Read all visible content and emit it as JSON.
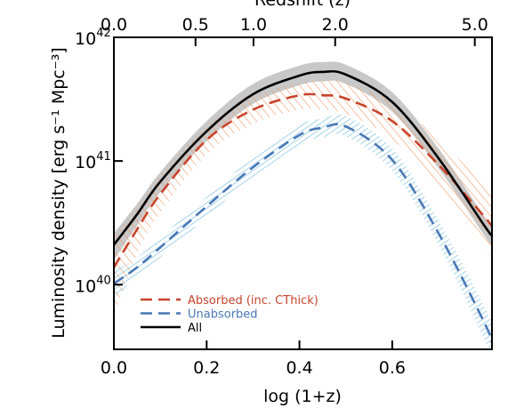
{
  "chart_data": {
    "type": "line",
    "title": "Redshift (z)",
    "xlabel": "log (1+z)",
    "ylabel": "Luminosity density [erg s⁻¹ Mpc⁻³]",
    "xlim": [
      0,
      0.815
    ],
    "xticks": [
      {
        "value": 0,
        "label": "0.0"
      },
      0.2,
      0.4,
      0.6
    ],
    "x2ticks": [
      {
        "value": 0,
        "label": "0.0"
      },
      {
        "value": 0.176,
        "label": "0.5"
      },
      {
        "value": 0.301,
        "label": "1.0"
      },
      {
        "value": 0.477,
        "label": "2.0"
      },
      {
        "value": 0.778,
        "label": "5.0"
      }
    ],
    "yscale": "log",
    "ylim": [
      3e+39,
      1e+42
    ],
    "yticks": [
      {
        "value": 1e+40,
        "label": "10",
        "exponent": "40"
      },
      {
        "value": 1e+41,
        "label": "10",
        "exponent": "41"
      },
      {
        "value": 1e+42,
        "label": "10",
        "exponent": "42"
      }
    ],
    "legend": "lower left",
    "x": [
      0,
      0.05,
      0.1,
      0.2,
      0.3,
      0.4,
      0.45,
      0.5,
      0.6,
      0.7,
      0.8,
      0.815
    ],
    "series": [
      {
        "name": "Absorbed (inc. CThick)",
        "color": "#c8442c",
        "dash": true,
        "band_color": "#f09a6a",
        "band_style": "hatch-up",
        "values": [
          1.38e+40,
          2.8e+40,
          5.4e+40,
          1.48e+41,
          2.6e+41,
          3.4e+41,
          3.4e+41,
          3.2e+41,
          2.1e+41,
          9.3e+40,
          3.5e+40,
          2.95e+40
        ],
        "lower": [
          5.6e+39,
          1.78e+40,
          3.8e+40,
          1.12e+41,
          2e+41,
          2.6e+41,
          2.6e+41,
          2.4e+41,
          1.5e+41,
          5.6e+40,
          2e+40,
          1.66e+40
        ],
        "upper": [
          2.5e+40,
          4.2e+40,
          7.6e+40,
          1.9e+41,
          3.3e+41,
          4.3e+41,
          4.4e+41,
          4.3e+41,
          3e+41,
          1.5e+41,
          6.3e+40,
          5.2e+40
        ]
      },
      {
        "name": "Unabsorbed",
        "color": "#4a78b5",
        "dash": true,
        "band_color": "#5ab0d8",
        "band_style": "hatch-down",
        "values": [
          1.02e+40,
          1.38e+40,
          2e+40,
          4.3e+40,
          8.9e+40,
          1.62e+41,
          1.86e+41,
          1.9e+41,
          1.02e+41,
          2.6e+40,
          4.8e+39,
          3.4e+39
        ],
        "lower": [
          7.9e+39,
          1.15e+40,
          1.66e+40,
          3.5e+40,
          7.4e+40,
          1.35e+41,
          1.55e+41,
          1.58e+41,
          8.3e+40,
          2.1e+40,
          3.5e+39,
          2.5e+39
        ],
        "upper": [
          1.26e+40,
          1.66e+40,
          2.4e+40,
          5.1e+40,
          1.07e+41,
          1.95e+41,
          2.2e+41,
          2.3e+41,
          1.26e+41,
          3.3e+40,
          6.5e+39,
          4.6e+39
        ]
      },
      {
        "name": "All",
        "color": "#000000",
        "dash": false,
        "band_color": "#c8c8c8",
        "band_style": "solid",
        "values": [
          2.1e+40,
          3.7e+40,
          6.8e+40,
          1.74e+41,
          3.47e+41,
          4.9e+41,
          5.25e+41,
          5e+41,
          3e+41,
          1.05e+41,
          2.95e+40,
          2.5e+40
        ],
        "lower": [
          1.58e+40,
          3e+40,
          5.6e+40,
          1.45e+41,
          2.9e+41,
          4.1e+41,
          4.4e+41,
          4.2e+41,
          2.5e+41,
          8.7e+40,
          2.45e+40,
          2.1e+40
        ],
        "upper": [
          2.6e+40,
          4.5e+40,
          8.1e+40,
          2.1e+41,
          4.2e+41,
          5.9e+41,
          6.3e+41,
          6e+41,
          3.6e+41,
          1.26e+41,
          3.5e+40,
          3e+40
        ]
      }
    ]
  }
}
